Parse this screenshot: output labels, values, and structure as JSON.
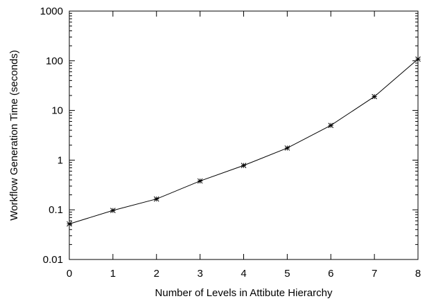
{
  "chart_data": {
    "type": "line",
    "xlabel": "Number of Levels in Attibute Hierarchy",
    "ylabel": "Workflow Generation Time (seconds)",
    "x_scale": "linear",
    "y_scale": "log",
    "xlim": [
      0,
      8
    ],
    "ylim": [
      0.01,
      1000
    ],
    "x_ticks": [
      "0",
      "1",
      "2",
      "3",
      "4",
      "5",
      "6",
      "7",
      "8"
    ],
    "y_ticks": [
      "0.01",
      "0.1",
      "1",
      "10",
      "100",
      "1000"
    ],
    "grid": false,
    "legend": "none",
    "marker": "asterisk",
    "line_color": "#000000",
    "series": [
      {
        "x": [
          0,
          1,
          2,
          3,
          4,
          5,
          6,
          7,
          8
        ],
        "y": [
          0.052,
          0.097,
          0.165,
          0.38,
          0.78,
          1.75,
          5.0,
          19.0,
          108.0
        ]
      }
    ]
  }
}
